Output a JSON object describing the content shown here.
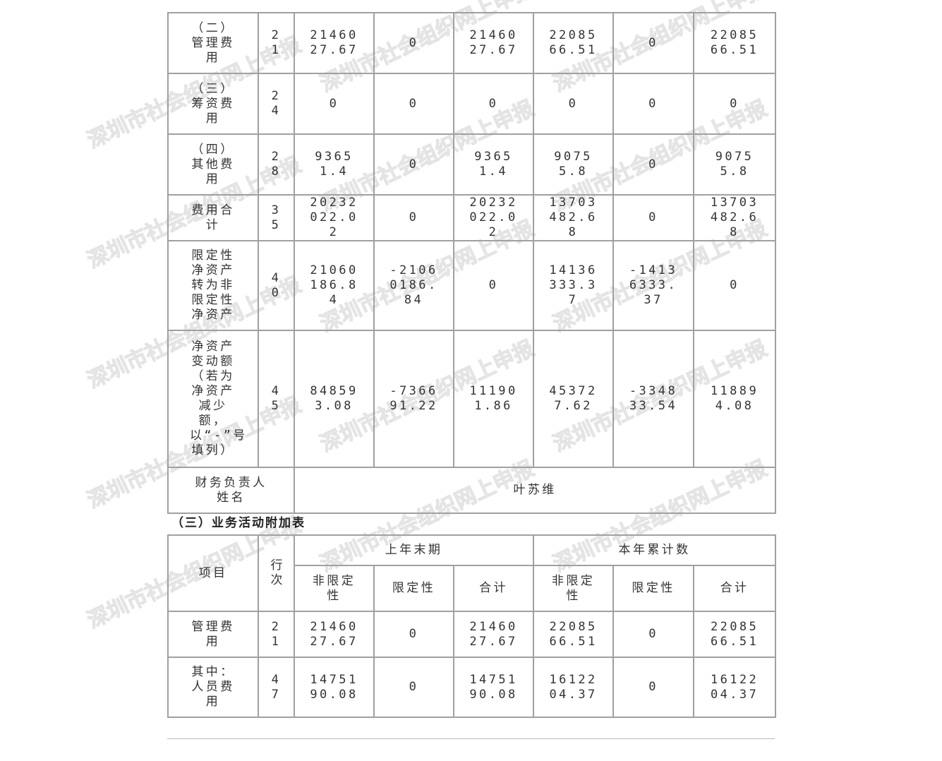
{
  "watermark": "深圳市社会组织网上申报",
  "table1": {
    "rows": [
      {
        "item": "（二）管理费用",
        "line": "21",
        "values": [
          "2146027.67",
          "0",
          "2146027.67",
          "2208566.51",
          "0",
          "2208566.51"
        ]
      },
      {
        "item": "（三）筹资费用",
        "line": "24",
        "values": [
          "0",
          "0",
          "0",
          "0",
          "0",
          "0"
        ]
      },
      {
        "item": "（四）其他费用",
        "line": "28",
        "values": [
          "93651.4",
          "0",
          "93651.4",
          "90755.8",
          "0",
          "90755.8"
        ]
      },
      {
        "item": "费用合计",
        "line": "35",
        "values": [
          "20232022.02",
          "0",
          "20232022.02",
          "13703482.68",
          "0",
          "13703482.68"
        ]
      },
      {
        "item": "限定性净资产转为非限定性净资产",
        "line": "40",
        "values": [
          "21060186.84",
          "-21060186.84",
          "0",
          "14136333.37",
          "-14136333.37",
          "0"
        ]
      },
      {
        "item": "净资产变动额（若为净资产减少额，以“-”号填列）",
        "line": "45",
        "values": [
          "848593.08",
          "-736691.22",
          "111901.86",
          "453727.62",
          "-334833.54",
          "118894.08"
        ]
      }
    ],
    "finance_head_label": "财务负责人姓名",
    "finance_head_name": "叶苏维"
  },
  "section_title": "（三）业务活动附加表",
  "table2": {
    "headers": {
      "item": "项目",
      "line": "行次",
      "prev_period": "上年末期",
      "curr_period": "本年累计数",
      "sub": [
        "非限定性",
        "限定性",
        "合计",
        "非限定性",
        "限定性",
        "合计"
      ]
    },
    "rows": [
      {
        "item": "管理费用",
        "line": "21",
        "values": [
          "2146027.67",
          "0",
          "2146027.67",
          "2208566.51",
          "0",
          "2208566.51"
        ]
      },
      {
        "item": "其中：人员费用",
        "line": "47",
        "values": [
          "1475190.08",
          "0",
          "1475190.08",
          "1612204.37",
          "0",
          "1612204.37"
        ]
      }
    ]
  }
}
